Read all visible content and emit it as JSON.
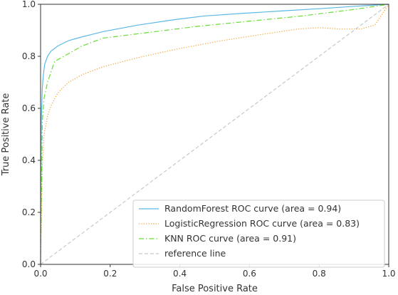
{
  "chart_data": {
    "type": "line",
    "title": "",
    "xlabel": "False Positive Rate",
    "ylabel": "True Positive Rate",
    "xlim": [
      0.0,
      1.0
    ],
    "ylim": [
      0.0,
      1.0
    ],
    "xticks": [
      0.0,
      0.2,
      0.4,
      0.6,
      0.8,
      1.0
    ],
    "yticks": [
      0.0,
      0.2,
      0.4,
      0.6,
      0.8,
      1.0
    ],
    "xtick_labels": [
      "0.0",
      "0.2",
      "0.4",
      "0.6",
      "0.8",
      "1.0"
    ],
    "ytick_labels": [
      "0.0",
      "0.2",
      "0.4",
      "0.6",
      "0.8",
      "1.0"
    ],
    "grid": false,
    "legend_position": "lower-right",
    "series": [
      {
        "name": "RandomForest ROC curve (area = 0.94)",
        "color": "#5bb8e6",
        "dash": "solid",
        "x": [
          0.0,
          0.002,
          0.005,
          0.008,
          0.012,
          0.02,
          0.03,
          0.05,
          0.08,
          0.12,
          0.18,
          0.28,
          0.38,
          0.47,
          0.58,
          0.7,
          0.8,
          0.9,
          1.0
        ],
        "y": [
          0.0,
          0.55,
          0.68,
          0.73,
          0.77,
          0.8,
          0.82,
          0.84,
          0.86,
          0.875,
          0.895,
          0.92,
          0.94,
          0.955,
          0.965,
          0.975,
          0.983,
          0.992,
          1.0
        ]
      },
      {
        "name": "LogisticRegression ROC curve (area = 0.83)",
        "color": "#f0a030",
        "dash": "dotted",
        "x": [
          0.0,
          0.005,
          0.01,
          0.02,
          0.03,
          0.05,
          0.08,
          0.12,
          0.18,
          0.28,
          0.4,
          0.52,
          0.64,
          0.74,
          0.8,
          0.86,
          0.92,
          0.96,
          1.0
        ],
        "y": [
          0.0,
          0.38,
          0.5,
          0.57,
          0.61,
          0.66,
          0.7,
          0.73,
          0.76,
          0.795,
          0.83,
          0.86,
          0.885,
          0.905,
          0.91,
          0.905,
          0.905,
          0.92,
          1.0
        ]
      },
      {
        "name": "KNN ROC curve (area = 0.91)",
        "color": "#66dd33",
        "dash": "dashdot",
        "x": [
          0.0,
          0.005,
          0.01,
          0.02,
          0.04,
          0.08,
          0.12,
          0.18,
          0.3,
          0.45,
          0.6,
          0.75,
          0.9,
          1.0
        ],
        "y": [
          0.0,
          0.55,
          0.64,
          0.7,
          0.78,
          0.81,
          0.84,
          0.87,
          0.89,
          0.915,
          0.935,
          0.955,
          0.98,
          1.0
        ]
      },
      {
        "name": "reference line",
        "color": "#c8c8c8",
        "dash": "dashed",
        "x": [
          0.0,
          1.0
        ],
        "y": [
          0.0,
          1.0
        ]
      }
    ]
  }
}
